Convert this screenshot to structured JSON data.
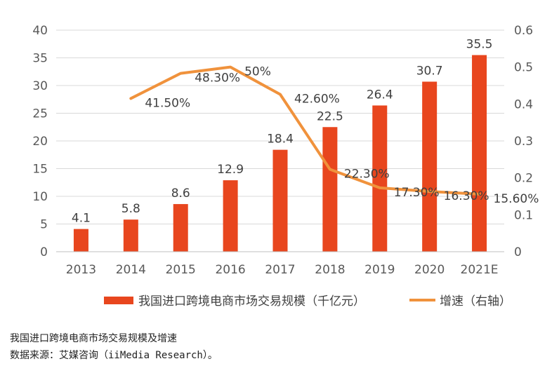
{
  "chart_data": {
    "type": "bar",
    "categories": [
      "2013",
      "2014",
      "2015",
      "2016",
      "2017",
      "2018",
      "2019",
      "2020",
      "2021E"
    ],
    "series": [
      {
        "name": "我国进口跨境电商市场交易规模（千亿元）",
        "type": "bar",
        "axis": "left",
        "values": [
          4.1,
          5.8,
          8.6,
          12.9,
          18.4,
          22.5,
          26.4,
          30.7,
          35.5
        ],
        "labels": [
          "4.1",
          "5.8",
          "8.6",
          "12.9",
          "18.4",
          "22.5",
          "26.4",
          "30.7",
          "35.5"
        ]
      },
      {
        "name": "增速（右轴）",
        "type": "line",
        "axis": "right",
        "values": [
          null,
          0.415,
          0.483,
          0.5,
          0.426,
          0.223,
          0.173,
          0.163,
          0.156
        ],
        "labels": [
          "",
          "41.50%",
          "48.30%",
          "50%",
          "42.60%",
          "22.30%",
          "17.30%",
          "16.30%",
          "15.60%"
        ]
      }
    ],
    "y_left": {
      "min": 0,
      "max": 40,
      "ticks": [
        "0",
        "5",
        "10",
        "15",
        "20",
        "25",
        "30",
        "35",
        "40"
      ]
    },
    "y_right": {
      "min": 0,
      "max": 0.6,
      "ticks": [
        "0",
        "0.1",
        "0.2",
        "0.3",
        "0.4",
        "0.5",
        "0.6"
      ]
    },
    "grid": true,
    "legend_position": "bottom",
    "colors": {
      "bar": "#e8461e",
      "line": "#f0923c"
    }
  },
  "caption": {
    "line1": "我国进口跨境电商市场交易规模及增速",
    "line2": "数据来源：艾媒咨询（iiMedia Research）。"
  }
}
